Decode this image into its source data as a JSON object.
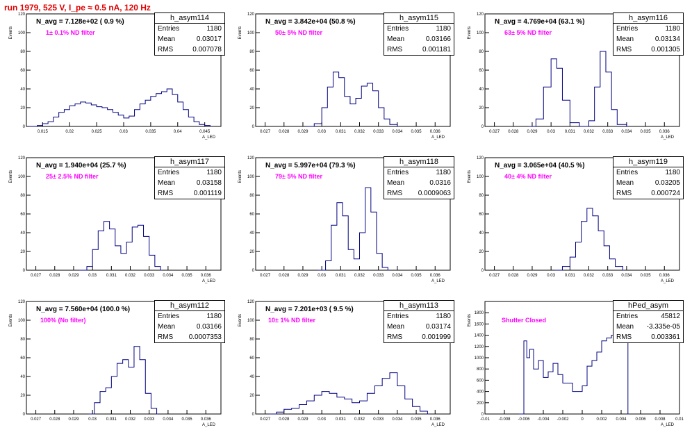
{
  "title": "run 1979,   525 V, I_pe ≈ 0.5 nA, 120 Hz",
  "colors": {
    "hist": "#000080",
    "title": "#e00000",
    "filter_text": "#ff00ff"
  },
  "stat_labels": {
    "entries": "Entries",
    "mean": "Mean",
    "rms": "RMS"
  },
  "chart_data": [
    {
      "type": "histogram",
      "name": "h_asym114",
      "n_avg": "N_avg = 7.128e+02 ( 0.9 %)",
      "filter": "1± 0.1% ND filter",
      "stats": {
        "entries": "1180",
        "mean": "0.03017",
        "rms": "0.007078"
      },
      "ylabel": "Events",
      "xlabel": "A_LED",
      "xlim": [
        0.012,
        0.048
      ],
      "ylim": [
        0,
        120
      ],
      "yticks": [
        0,
        20,
        40,
        60,
        80,
        100,
        120
      ],
      "xticks": [
        "0.015",
        "0.02",
        "0.025",
        "0.03",
        "0.035",
        "0.04",
        "0.045"
      ],
      "xtick_values": [
        0.015,
        0.02,
        0.025,
        0.03,
        0.035,
        0.04,
        0.045
      ],
      "x": [
        0.0125,
        0.014,
        0.015,
        0.016,
        0.017,
        0.018,
        0.019,
        0.02,
        0.021,
        0.022,
        0.023,
        0.024,
        0.025,
        0.026,
        0.027,
        0.028,
        0.029,
        0.03,
        0.031,
        0.032,
        0.033,
        0.034,
        0.035,
        0.036,
        0.037,
        0.038,
        0.039,
        0.04,
        0.041,
        0.042,
        0.043,
        0.044,
        0.045,
        0.046
      ],
      "values": [
        0,
        1,
        3,
        5,
        10,
        15,
        18,
        22,
        24,
        26,
        25,
        23,
        21,
        20,
        18,
        15,
        12,
        9,
        11,
        18,
        24,
        28,
        32,
        35,
        37,
        40,
        34,
        26,
        18,
        10,
        5,
        2,
        1,
        0
      ]
    },
    {
      "type": "histogram",
      "name": "h_asym115",
      "n_avg": "N_avg = 3.842e+04 (50.8 %)",
      "filter": "50± 5% ND filter",
      "stats": {
        "entries": "1180",
        "mean": "0.03166",
        "rms": "0.001181"
      },
      "ylabel": "Events",
      "xlabel": "A_LED",
      "xlim": [
        0.0265,
        0.0368
      ],
      "ylim": [
        0,
        120
      ],
      "yticks": [
        0,
        20,
        40,
        60,
        80,
        100,
        120
      ],
      "xticks": [
        "0.027",
        "0.028",
        "0.029",
        "0.03",
        "0.031",
        "0.032",
        "0.033",
        "0.034",
        "0.035",
        "0.036"
      ],
      "xtick_values": [
        0.027,
        0.028,
        0.029,
        0.03,
        0.031,
        0.032,
        0.033,
        0.034,
        0.035,
        0.036
      ],
      "x": [
        0.0292,
        0.0296,
        0.03,
        0.0303,
        0.0306,
        0.0309,
        0.0312,
        0.0315,
        0.0318,
        0.0321,
        0.0324,
        0.0327,
        0.033,
        0.0333,
        0.0336,
        0.034
      ],
      "values": [
        0,
        3,
        20,
        42,
        58,
        52,
        32,
        24,
        30,
        43,
        46,
        38,
        20,
        8,
        2,
        0
      ]
    },
    {
      "type": "histogram",
      "name": "h_asym116",
      "n_avg": "N_avg = 4.769e+04 (63.1 %)",
      "filter": "63± 5% ND filter",
      "stats": {
        "entries": "1180",
        "mean": "0.03134",
        "rms": "0.001305"
      },
      "ylabel": "Events",
      "xlabel": "A_LED",
      "xlim": [
        0.0265,
        0.0368
      ],
      "ylim": [
        0,
        120
      ],
      "yticks": [
        0,
        20,
        40,
        60,
        80,
        100,
        120
      ],
      "xticks": [
        "0.027",
        "0.028",
        "0.029",
        "0.03",
        "0.031",
        "0.032",
        "0.033",
        "0.034",
        "0.035",
        "0.036"
      ],
      "xtick_values": [
        0.027,
        0.028,
        0.029,
        0.03,
        0.031,
        0.032,
        0.033,
        0.034,
        0.035,
        0.036
      ],
      "x": [
        0.0288,
        0.0292,
        0.0296,
        0.03,
        0.0303,
        0.0306,
        0.031,
        0.0315,
        0.032,
        0.0323,
        0.0326,
        0.0329,
        0.0332,
        0.0335,
        0.034
      ],
      "values": [
        0,
        8,
        42,
        72,
        62,
        28,
        4,
        0,
        6,
        42,
        80,
        58,
        18,
        2,
        0
      ]
    },
    {
      "type": "histogram",
      "name": "h_asym117",
      "n_avg": "N_avg = 1.940e+04 (25.7 %)",
      "filter": "25± 2.5% ND filter",
      "stats": {
        "entries": "1180",
        "mean": "0.03158",
        "rms": "0.001119"
      },
      "ylabel": "Events",
      "xlabel": "A_LED",
      "xlim": [
        0.0265,
        0.0368
      ],
      "ylim": [
        0,
        120
      ],
      "yticks": [
        0,
        20,
        40,
        60,
        80,
        100,
        120
      ],
      "xticks": [
        "0.027",
        "0.028",
        "0.029",
        "0.03",
        "0.031",
        "0.032",
        "0.033",
        "0.034",
        "0.035",
        "0.036"
      ],
      "xtick_values": [
        0.027,
        0.028,
        0.029,
        0.03,
        0.031,
        0.032,
        0.033,
        0.034,
        0.035,
        0.036
      ],
      "x": [
        0.0293,
        0.0297,
        0.03,
        0.0303,
        0.0306,
        0.0309,
        0.0312,
        0.0315,
        0.0318,
        0.0321,
        0.0324,
        0.0327,
        0.033,
        0.0333,
        0.0336
      ],
      "values": [
        0,
        4,
        22,
        42,
        52,
        44,
        26,
        18,
        30,
        46,
        48,
        36,
        16,
        4,
        0
      ]
    },
    {
      "type": "histogram",
      "name": "h_asym118",
      "n_avg": "N_avg = 5.997e+04 (79.3 %)",
      "filter": "79± 5% ND filter",
      "stats": {
        "entries": "1180",
        "mean": "0.0316",
        "rms": "0.0009063"
      },
      "ylabel": "Events",
      "xlabel": "A_LED",
      "xlim": [
        0.0265,
        0.0368
      ],
      "ylim": [
        0,
        120
      ],
      "yticks": [
        0,
        20,
        40,
        60,
        80,
        100,
        120
      ],
      "xticks": [
        "0.027",
        "0.028",
        "0.029",
        "0.03",
        "0.031",
        "0.032",
        "0.033",
        "0.034",
        "0.035",
        "0.036"
      ],
      "xtick_values": [
        0.027,
        0.028,
        0.029,
        0.03,
        0.031,
        0.032,
        0.033,
        0.034,
        0.035,
        0.036
      ],
      "x": [
        0.0298,
        0.0302,
        0.0305,
        0.0308,
        0.0311,
        0.0314,
        0.0317,
        0.032,
        0.0323,
        0.0326,
        0.0329,
        0.0332,
        0.0335
      ],
      "values": [
        0,
        10,
        48,
        72,
        58,
        22,
        12,
        40,
        88,
        62,
        18,
        3,
        0
      ]
    },
    {
      "type": "histogram",
      "name": "h_asym119",
      "n_avg": "N_avg = 3.065e+04 (40.5 %)",
      "filter": "40± 4% ND filter",
      "stats": {
        "entries": "1180",
        "mean": "0.03205",
        "rms": "0.000724"
      },
      "ylabel": "Events",
      "xlabel": "A_LED",
      "xlim": [
        0.0265,
        0.0368
      ],
      "ylim": [
        0,
        120
      ],
      "yticks": [
        0,
        20,
        40,
        60,
        80,
        100,
        120
      ],
      "xticks": [
        "0.027",
        "0.028",
        "0.029",
        "0.03",
        "0.031",
        "0.032",
        "0.033",
        "0.034",
        "0.035",
        "0.036"
      ],
      "xtick_values": [
        0.027,
        0.028,
        0.029,
        0.03,
        0.031,
        0.032,
        0.033,
        0.034,
        0.035,
        0.036
      ],
      "x": [
        0.0302,
        0.0306,
        0.031,
        0.0313,
        0.0316,
        0.0319,
        0.0322,
        0.0325,
        0.0328,
        0.0331,
        0.0334,
        0.0338
      ],
      "values": [
        0,
        4,
        14,
        30,
        52,
        66,
        58,
        42,
        26,
        12,
        4,
        0
      ]
    },
    {
      "type": "histogram",
      "name": "h_asym112",
      "n_avg": "N_avg = 7.560e+04 (100.0 %)",
      "filter": "100% (No filter)",
      "stats": {
        "entries": "1180",
        "mean": "0.03166",
        "rms": "0.0007353"
      },
      "ylabel": "Events",
      "xlabel": "A_LED",
      "xlim": [
        0.0265,
        0.0368
      ],
      "ylim": [
        0,
        120
      ],
      "yticks": [
        0,
        20,
        40,
        60,
        80,
        100,
        120
      ],
      "xticks": [
        "0.027",
        "0.028",
        "0.029",
        "0.03",
        "0.031",
        "0.032",
        "0.033",
        "0.034",
        "0.035",
        "0.036"
      ],
      "xtick_values": [
        0.027,
        0.028,
        0.029,
        0.03,
        0.031,
        0.032,
        0.033,
        0.034,
        0.035,
        0.036
      ],
      "x": [
        0.0298,
        0.0301,
        0.0304,
        0.0307,
        0.031,
        0.0313,
        0.0316,
        0.0319,
        0.0322,
        0.0325,
        0.0328,
        0.0331,
        0.0334
      ],
      "values": [
        0,
        12,
        24,
        28,
        40,
        54,
        58,
        50,
        72,
        58,
        22,
        6,
        0
      ]
    },
    {
      "type": "histogram",
      "name": "h_asym113",
      "n_avg": "N_avg = 7.201e+03 ( 9.5 %)",
      "filter": "10± 1% ND filter",
      "stats": {
        "entries": "1180",
        "mean": "0.03174",
        "rms": "0.001999"
      },
      "ylabel": "Events",
      "xlabel": "A_LED",
      "xlim": [
        0.0265,
        0.0368
      ],
      "ylim": [
        0,
        120
      ],
      "yticks": [
        0,
        20,
        40,
        60,
        80,
        100,
        120
      ],
      "xticks": [
        "0.027",
        "0.028",
        "0.029",
        "0.03",
        "0.031",
        "0.032",
        "0.033",
        "0.034",
        "0.035",
        "0.036"
      ],
      "xtick_values": [
        0.027,
        0.028,
        0.029,
        0.03,
        0.031,
        0.032,
        0.033,
        0.034,
        0.035,
        0.036
      ],
      "x": [
        0.0272,
        0.0276,
        0.028,
        0.0284,
        0.0288,
        0.0292,
        0.0296,
        0.03,
        0.0304,
        0.0308,
        0.0312,
        0.0316,
        0.032,
        0.0324,
        0.0328,
        0.0332,
        0.0336,
        0.034,
        0.0344,
        0.0348,
        0.0352,
        0.0356
      ],
      "values": [
        0,
        2,
        5,
        6,
        10,
        14,
        20,
        24,
        22,
        18,
        16,
        12,
        14,
        22,
        30,
        38,
        44,
        30,
        16,
        8,
        3,
        0
      ]
    },
    {
      "type": "histogram",
      "name": "hPed_asym",
      "n_avg": "",
      "filter": "Shutter Closed",
      "stats": {
        "entries": "45812",
        "mean": "-3.335e-05",
        "rms": "0.003361"
      },
      "ylabel": "Events",
      "xlabel": "A_LED",
      "xlim": [
        -0.01,
        0.01
      ],
      "ylim": [
        0,
        2000
      ],
      "yticks": [
        0,
        200,
        400,
        600,
        800,
        1000,
        1200,
        1400,
        1600,
        1800
      ],
      "xticks": [
        "-0.01",
        "-0.008",
        "-0.006",
        "-0.004",
        "-0.002",
        "0",
        "0.002",
        "0.004",
        "0.006",
        "0.008",
        "0.01"
      ],
      "xtick_values": [
        -0.01,
        -0.008,
        -0.006,
        -0.004,
        -0.002,
        0,
        0.002,
        0.004,
        0.006,
        0.008,
        0.01
      ],
      "x": [
        -0.0065,
        -0.006,
        -0.0057,
        -0.0054,
        -0.005,
        -0.0045,
        -0.004,
        -0.0035,
        -0.003,
        -0.0025,
        -0.002,
        -0.0015,
        -0.001,
        -0.0005,
        0,
        0.0005,
        0.001,
        0.0015,
        0.002,
        0.0025,
        0.003,
        0.0035,
        0.004,
        0.0043,
        0.0047
      ],
      "values": [
        0,
        1300,
        1000,
        1150,
        800,
        950,
        650,
        750,
        900,
        700,
        550,
        550,
        400,
        400,
        500,
        850,
        950,
        1100,
        1300,
        1350,
        1400,
        1550,
        1850,
        1500,
        0
      ]
    }
  ]
}
